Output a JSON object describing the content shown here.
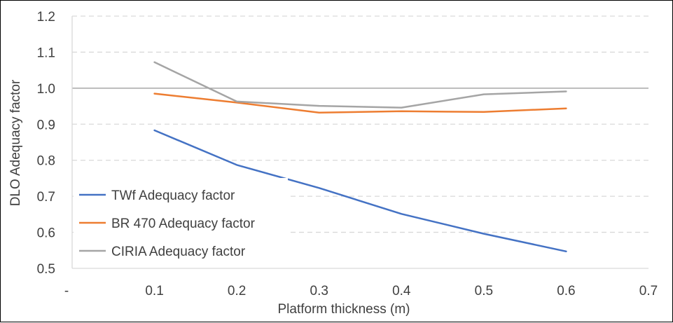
{
  "chart_data": {
    "type": "line",
    "title": "",
    "xlabel": "Platform thickness (m)",
    "ylabel": "DLO Adequacy factor",
    "xlim": [
      0,
      0.7
    ],
    "ylim": [
      0.5,
      1.2
    ],
    "x_ticks": [
      "-",
      "0.1",
      "0.2",
      "0.3",
      "0.4",
      "0.5",
      "0.6",
      "0.7"
    ],
    "y_ticks": [
      "0.5",
      "0.6",
      "0.7",
      "0.8",
      "0.9",
      "1.0",
      "1.1",
      "1.2"
    ],
    "grid": "horizontal-dashed",
    "reference_line": 1.0,
    "legend_position": "bottom-left",
    "series": [
      {
        "name": "TWf Adequacy factor",
        "color": "#4472C4",
        "x": [
          0.1,
          0.2,
          0.3,
          0.4,
          0.5,
          0.6
        ],
        "values": [
          0.883,
          0.787,
          0.723,
          0.651,
          0.596,
          0.547
        ]
      },
      {
        "name": "BR 470 Adequacy factor",
        "color": "#ED7D31",
        "x": [
          0.1,
          0.2,
          0.3,
          0.4,
          0.5,
          0.6
        ],
        "values": [
          0.985,
          0.96,
          0.932,
          0.936,
          0.934,
          0.944
        ]
      },
      {
        "name": "CIRIA Adequacy factor",
        "color": "#A5A5A5",
        "x": [
          0.1,
          0.2,
          0.3,
          0.4,
          0.5,
          0.6
        ],
        "values": [
          1.072,
          0.963,
          0.951,
          0.946,
          0.983,
          0.991
        ]
      }
    ]
  }
}
